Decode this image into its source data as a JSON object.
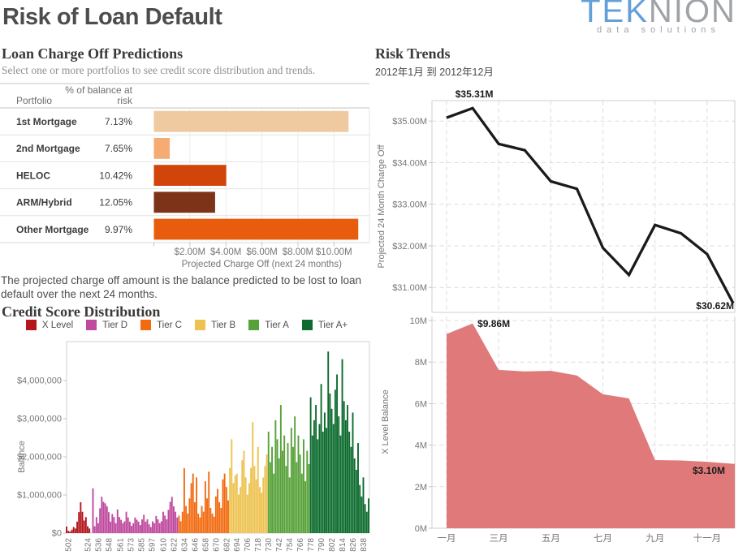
{
  "header": {
    "title": "Risk of Loan Default",
    "logo": {
      "part_blue": "TEK",
      "part_gray": "NION",
      "tagline": "data solutions"
    }
  },
  "charge_off": {
    "title": "Loan Charge Off Predictions",
    "subtitle": "Select one or more portfolios to see credit score distribution and trends."
  },
  "note": "The projected charge off amount is the balance predicted to be lost to loan default over the next 24 months.",
  "credit_distribution": {
    "title": "Credit Score Distribution"
  },
  "risk_trends": {
    "title": "Risk Trends",
    "subtitle": "2012年1月 到 2012年12月"
  },
  "chart_data": [
    {
      "type": "bar",
      "orientation": "horizontal",
      "title": "Loan Charge Off Predictions",
      "columns": {
        "portfolio": "Portfolio",
        "risk_line1": "% of balance at",
        "risk_line2": "risk"
      },
      "categories": [
        "1st Mortgage",
        "2nd Mortgage",
        "HELOC",
        "ARM/Hybrid",
        "Other Mortgage"
      ],
      "pct_balance_at_risk": [
        "7.13%",
        "7.65%",
        "10.42%",
        "12.05%",
        "9.97%"
      ],
      "values_m": [
        10.81,
        0.88,
        4.02,
        3.4,
        11.35
      ],
      "bar_colors": [
        "#EFC9A0",
        "#F5AC72",
        "#D2450A",
        "#7C3317",
        "#E85D0D"
      ],
      "xlabel": "Projected Charge Off (next 24 months)",
      "xticks": [
        "$2.00M",
        "$4.00M",
        "$6.00M",
        "$8.00M",
        "$10.00M"
      ],
      "xtick_values_m": [
        2,
        4,
        6,
        8,
        10
      ],
      "xlim": [
        0,
        12
      ]
    },
    {
      "type": "bar",
      "title": "Credit Score Distribution",
      "ylabel": "Balance",
      "yticks": [
        "$0",
        "$1,000,000",
        "$2,000,000",
        "$3,000,000",
        "$4,000,000"
      ],
      "ytick_values_k": [
        0,
        1000,
        2000,
        3000,
        4000
      ],
      "ylim_k": [
        0,
        5020
      ],
      "xlim": [
        500,
        845
      ],
      "xticks": [
        502,
        524,
        536,
        548,
        561,
        573,
        585,
        597,
        610,
        622,
        634,
        646,
        658,
        670,
        682,
        694,
        706,
        718,
        730,
        742,
        754,
        766,
        778,
        790,
        802,
        814,
        826,
        838
      ],
      "tiers": [
        {
          "label": "X Level",
          "color": "#B4161C",
          "max_score": 528
        },
        {
          "label": "Tier D",
          "color": "#BF4A9E",
          "max_score": 627
        },
        {
          "label": "Tier C",
          "color": "#F26B11",
          "max_score": 684
        },
        {
          "label": "Tier B",
          "color": "#EDC24F",
          "max_score": 729
        },
        {
          "label": "Tier A",
          "color": "#57A139",
          "max_score": 777
        },
        {
          "label": "Tier A+",
          "color": "#0C6B2D",
          "max_score": 850
        }
      ],
      "points_k": [
        [
          500,
          170
        ],
        [
          502,
          60
        ],
        [
          504,
          40
        ],
        [
          506,
          90
        ],
        [
          508,
          160
        ],
        [
          510,
          120
        ],
        [
          512,
          300
        ],
        [
          514,
          550
        ],
        [
          516,
          810
        ],
        [
          518,
          560
        ],
        [
          520,
          330
        ],
        [
          522,
          420
        ],
        [
          524,
          180
        ],
        [
          526,
          120
        ],
        [
          530,
          1170
        ],
        [
          532,
          180
        ],
        [
          534,
          420
        ],
        [
          536,
          260
        ],
        [
          538,
          650
        ],
        [
          540,
          950
        ],
        [
          542,
          820
        ],
        [
          544,
          780
        ],
        [
          546,
          700
        ],
        [
          548,
          550
        ],
        [
          550,
          300
        ],
        [
          552,
          500
        ],
        [
          554,
          420
        ],
        [
          556,
          260
        ],
        [
          558,
          620
        ],
        [
          560,
          420
        ],
        [
          562,
          350
        ],
        [
          564,
          260
        ],
        [
          566,
          310
        ],
        [
          568,
          560
        ],
        [
          570,
          410
        ],
        [
          572,
          300
        ],
        [
          574,
          190
        ],
        [
          576,
          260
        ],
        [
          578,
          410
        ],
        [
          580,
          350
        ],
        [
          582,
          300
        ],
        [
          584,
          210
        ],
        [
          586,
          360
        ],
        [
          588,
          480
        ],
        [
          590,
          300
        ],
        [
          592,
          360
        ],
        [
          594,
          230
        ],
        [
          596,
          160
        ],
        [
          598,
          310
        ],
        [
          600,
          260
        ],
        [
          602,
          450
        ],
        [
          604,
          360
        ],
        [
          606,
          260
        ],
        [
          608,
          310
        ],
        [
          610,
          560
        ],
        [
          612,
          460
        ],
        [
          614,
          360
        ],
        [
          616,
          610
        ],
        [
          618,
          820
        ],
        [
          620,
          950
        ],
        [
          622,
          700
        ],
        [
          624,
          560
        ],
        [
          626,
          410
        ],
        [
          628,
          460
        ],
        [
          630,
          310
        ],
        [
          632,
          560
        ],
        [
          634,
          1700
        ],
        [
          636,
          710
        ],
        [
          638,
          510
        ],
        [
          640,
          910
        ],
        [
          642,
          1310
        ],
        [
          644,
          1560
        ],
        [
          646,
          810
        ],
        [
          648,
          1460
        ],
        [
          650,
          510
        ],
        [
          652,
          410
        ],
        [
          654,
          710
        ],
        [
          656,
          560
        ],
        [
          658,
          1360
        ],
        [
          660,
          910
        ],
        [
          662,
          1610
        ],
        [
          664,
          660
        ],
        [
          666,
          510
        ],
        [
          668,
          430
        ],
        [
          670,
          960
        ],
        [
          672,
          1160
        ],
        [
          674,
          810
        ],
        [
          676,
          660
        ],
        [
          678,
          1410
        ],
        [
          680,
          1560
        ],
        [
          682,
          1210
        ],
        [
          684,
          860
        ],
        [
          686,
          1710
        ],
        [
          688,
          2460
        ],
        [
          690,
          1310
        ],
        [
          692,
          1510
        ],
        [
          694,
          1560
        ],
        [
          696,
          1010
        ],
        [
          698,
          1210
        ],
        [
          700,
          1910
        ],
        [
          702,
          2160
        ],
        [
          704,
          1460
        ],
        [
          706,
          1010
        ],
        [
          708,
          1310
        ],
        [
          710,
          1710
        ],
        [
          712,
          2910
        ],
        [
          714,
          1760
        ],
        [
          716,
          1410
        ],
        [
          718,
          2260
        ],
        [
          720,
          1210
        ],
        [
          722,
          1060
        ],
        [
          724,
          1460
        ],
        [
          726,
          1760
        ],
        [
          728,
          2060
        ],
        [
          730,
          2660
        ],
        [
          732,
          1860
        ],
        [
          734,
          2260
        ],
        [
          736,
          1560
        ],
        [
          738,
          2960
        ],
        [
          740,
          2460
        ],
        [
          742,
          1960
        ],
        [
          744,
          3360
        ],
        [
          746,
          2160
        ],
        [
          748,
          2560
        ],
        [
          750,
          1760
        ],
        [
          752,
          2360
        ],
        [
          754,
          1460
        ],
        [
          756,
          2760
        ],
        [
          758,
          2260
        ],
        [
          760,
          3060
        ],
        [
          762,
          1860
        ],
        [
          764,
          2560
        ],
        [
          766,
          2060
        ],
        [
          768,
          1560
        ],
        [
          770,
          2460
        ],
        [
          772,
          1360
        ],
        [
          774,
          2160
        ],
        [
          776,
          1810
        ],
        [
          778,
          3560
        ],
        [
          780,
          2560
        ],
        [
          782,
          2960
        ],
        [
          784,
          3360
        ],
        [
          786,
          2460
        ],
        [
          788,
          2860
        ],
        [
          790,
          3910
        ],
        [
          792,
          2660
        ],
        [
          794,
          3160
        ],
        [
          796,
          2760
        ],
        [
          798,
          4760
        ],
        [
          800,
          3660
        ],
        [
          802,
          3260
        ],
        [
          804,
          2860
        ],
        [
          806,
          3760
        ],
        [
          808,
          4160
        ],
        [
          810,
          3060
        ],
        [
          812,
          2560
        ],
        [
          814,
          4560
        ],
        [
          816,
          3460
        ],
        [
          818,
          2960
        ],
        [
          820,
          3360
        ],
        [
          822,
          2660
        ],
        [
          824,
          2260
        ],
        [
          826,
          3160
        ],
        [
          828,
          1960
        ],
        [
          830,
          1660
        ],
        [
          832,
          2360
        ],
        [
          834,
          1260
        ],
        [
          836,
          960
        ],
        [
          838,
          1460
        ],
        [
          840,
          760
        ],
        [
          842,
          560
        ],
        [
          844,
          910
        ]
      ]
    },
    {
      "type": "line",
      "ylabel": "Projected 24 Month Charge Off",
      "months": [
        1,
        2,
        3,
        4,
        5,
        6,
        7,
        8,
        9,
        10,
        11,
        12
      ],
      "values_m": [
        35.08,
        35.31,
        34.45,
        34.3,
        33.55,
        33.37,
        31.95,
        31.3,
        32.5,
        32.3,
        31.8,
        30.62
      ],
      "yticks": [
        "$31.00M",
        "$32.00M",
        "$33.00M",
        "$34.00M",
        "$35.00M"
      ],
      "ytick_values_m": [
        31,
        32,
        33,
        34,
        35
      ],
      "line_color": "#1A1A1A",
      "annotations": [
        {
          "text": "$35.31M",
          "month": 2
        },
        {
          "text": "$30.62M",
          "month": 12
        }
      ]
    },
    {
      "type": "area",
      "ylabel": "X Level Balance",
      "months": [
        1,
        2,
        3,
        4,
        5,
        6,
        7,
        8,
        9,
        10,
        11,
        12
      ],
      "values_m": [
        9.35,
        9.86,
        7.62,
        7.55,
        7.58,
        7.35,
        6.45,
        6.25,
        3.28,
        3.26,
        3.2,
        3.1
      ],
      "yticks": [
        "0M",
        "2M",
        "4M",
        "6M",
        "8M",
        "10M"
      ],
      "ytick_values_m": [
        0,
        2,
        4,
        6,
        8,
        10
      ],
      "xticks": [
        "一月",
        "三月",
        "五月",
        "七月",
        "九月",
        "十一月"
      ],
      "xtick_months": [
        1,
        3,
        5,
        7,
        9,
        11
      ],
      "fill_color": "#E07A7A",
      "annotations": [
        {
          "text": "$9.86M",
          "month": 2
        },
        {
          "text": "$3.10M",
          "month": 11.6
        }
      ]
    }
  ]
}
